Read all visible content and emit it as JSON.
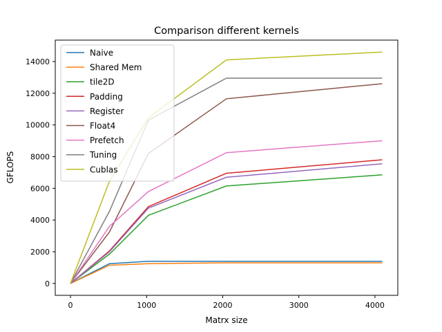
{
  "chart_data": {
    "type": "line",
    "title": "Comparison different kernels",
    "xlabel": "Matrx size",
    "ylabel": "GFLOPS",
    "xlim": [
      -200,
      4300
    ],
    "ylim": [
      -750,
      15350
    ],
    "xticks": [
      0,
      1000,
      2000,
      3000,
      4000
    ],
    "yticks": [
      0,
      2000,
      4000,
      6000,
      8000,
      10000,
      12000,
      14000
    ],
    "grid": false,
    "legend_position": "top-left",
    "x": [
      0,
      512,
      1024,
      2048,
      4096
    ],
    "series": [
      {
        "name": "Naive",
        "color": "#1f77b4",
        "values": [
          0,
          1250,
          1400,
          1400,
          1400
        ]
      },
      {
        "name": "Shared Mem",
        "color": "#ff7f0e",
        "values": [
          0,
          1150,
          1250,
          1300,
          1300
        ]
      },
      {
        "name": "tile2D",
        "color": "#2ca02c",
        "values": [
          0,
          1850,
          4300,
          6150,
          6850
        ]
      },
      {
        "name": "Padding",
        "color": "#d62728",
        "values": [
          0,
          2050,
          4850,
          6950,
          7800
        ]
      },
      {
        "name": "Register",
        "color": "#9467bd",
        "values": [
          0,
          2000,
          4750,
          6700,
          7550
        ]
      },
      {
        "name": "Float4",
        "color": "#8c564b",
        "values": [
          0,
          3250,
          8200,
          11650,
          12600
        ]
      },
      {
        "name": "Prefetch",
        "color": "#e377c2",
        "values": [
          0,
          3600,
          5800,
          8250,
          9000
        ]
      },
      {
        "name": "Tuning",
        "color": "#7f7f7f",
        "values": [
          0,
          4550,
          10300,
          12950,
          12950
        ]
      },
      {
        "name": "Cublas",
        "color": "#bcbd22",
        "values": [
          0,
          6450,
          10450,
          14100,
          14600
        ]
      }
    ]
  }
}
